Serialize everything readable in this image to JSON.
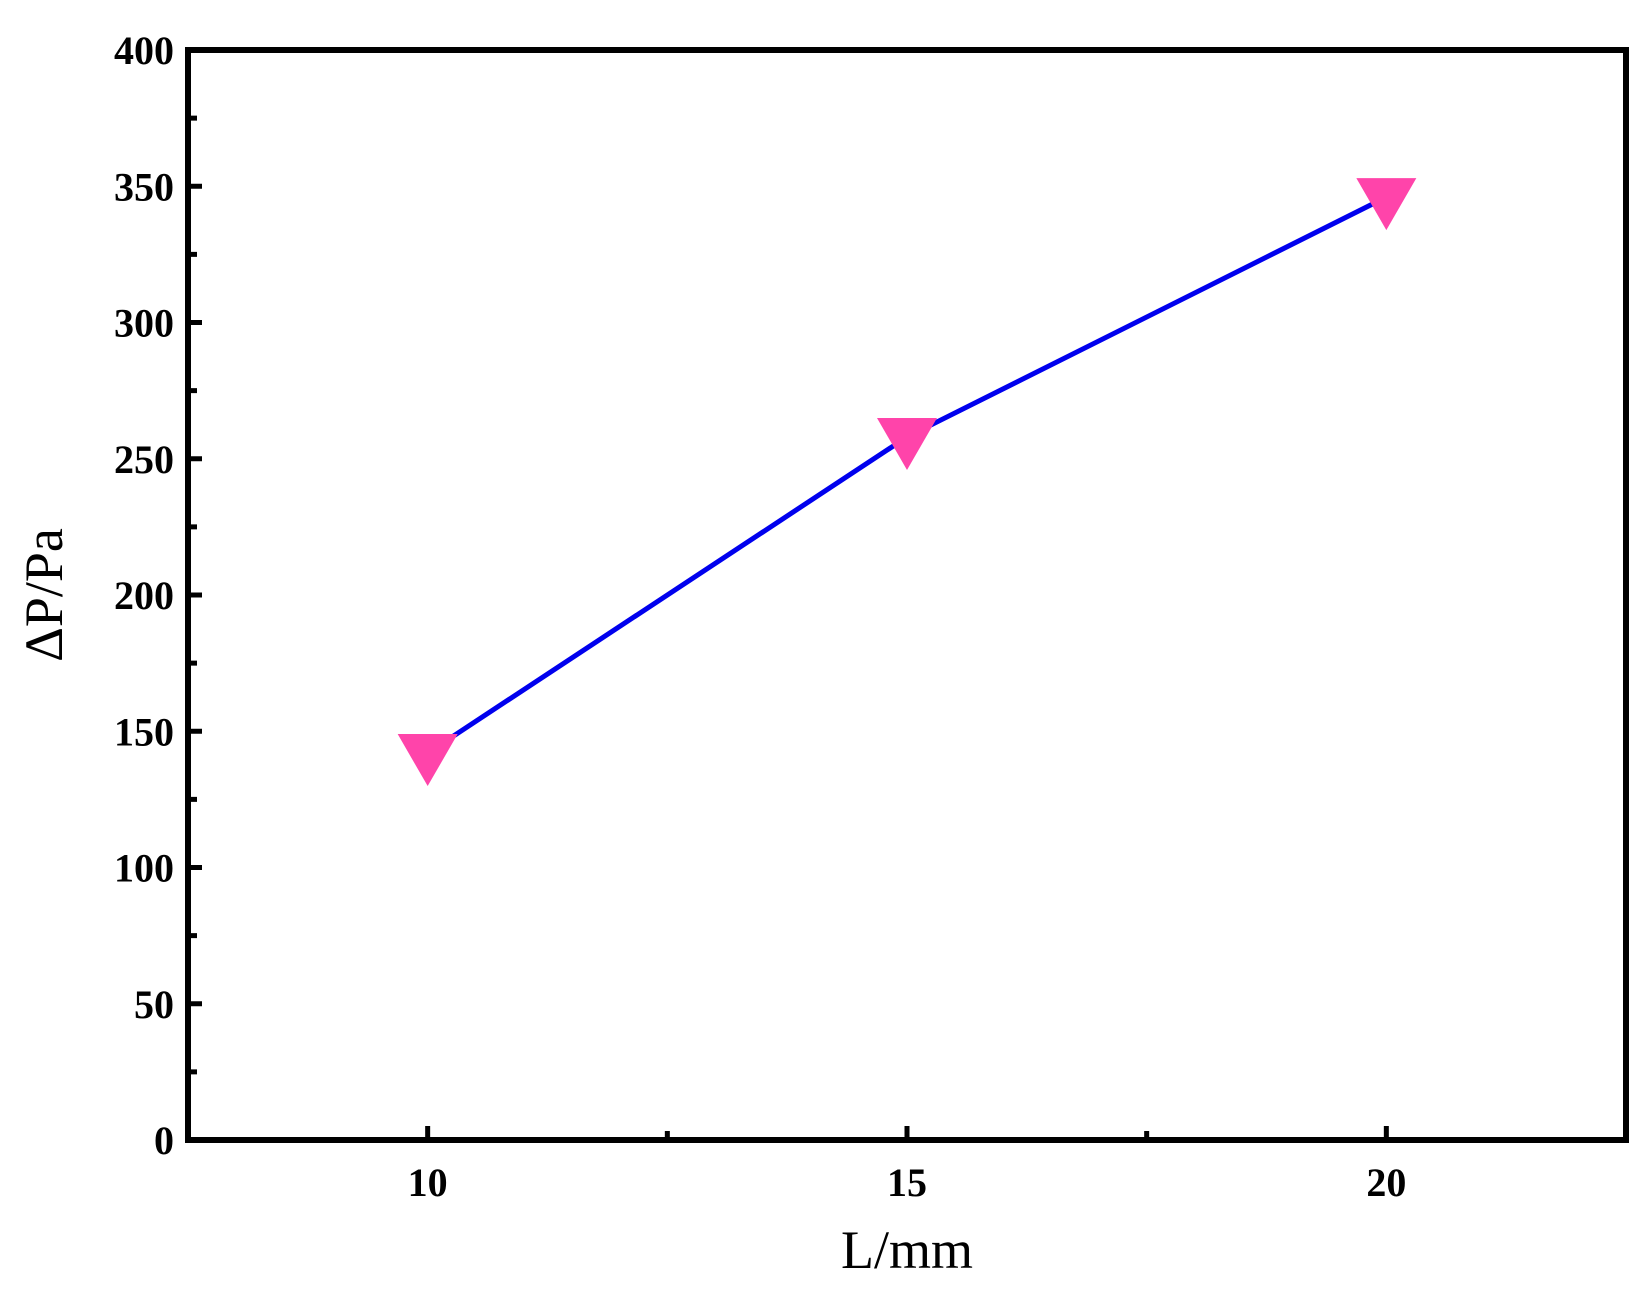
{
  "chart_data": {
    "type": "line",
    "title": "",
    "xlabel": "L/mm",
    "ylabel": "ΔP/Pa",
    "xlim": [
      7.5,
      22.5
    ],
    "ylim": [
      0,
      400
    ],
    "x_major_ticks": [
      10,
      15,
      20
    ],
    "x_minor_ticks": [
      12.5,
      17.5
    ],
    "y_major_ticks": [
      0,
      50,
      100,
      150,
      200,
      250,
      300,
      350,
      400
    ],
    "y_minor_ticks": [
      25,
      75,
      125,
      175,
      225,
      275,
      325,
      375
    ],
    "grid": false,
    "legend": "none",
    "series": [
      {
        "x": [
          10,
          15,
          20
        ],
        "values": [
          142,
          258,
          346
        ],
        "line_color": "#0000ee",
        "marker": "down-triangle",
        "marker_color": "#ff44aa"
      }
    ]
  }
}
